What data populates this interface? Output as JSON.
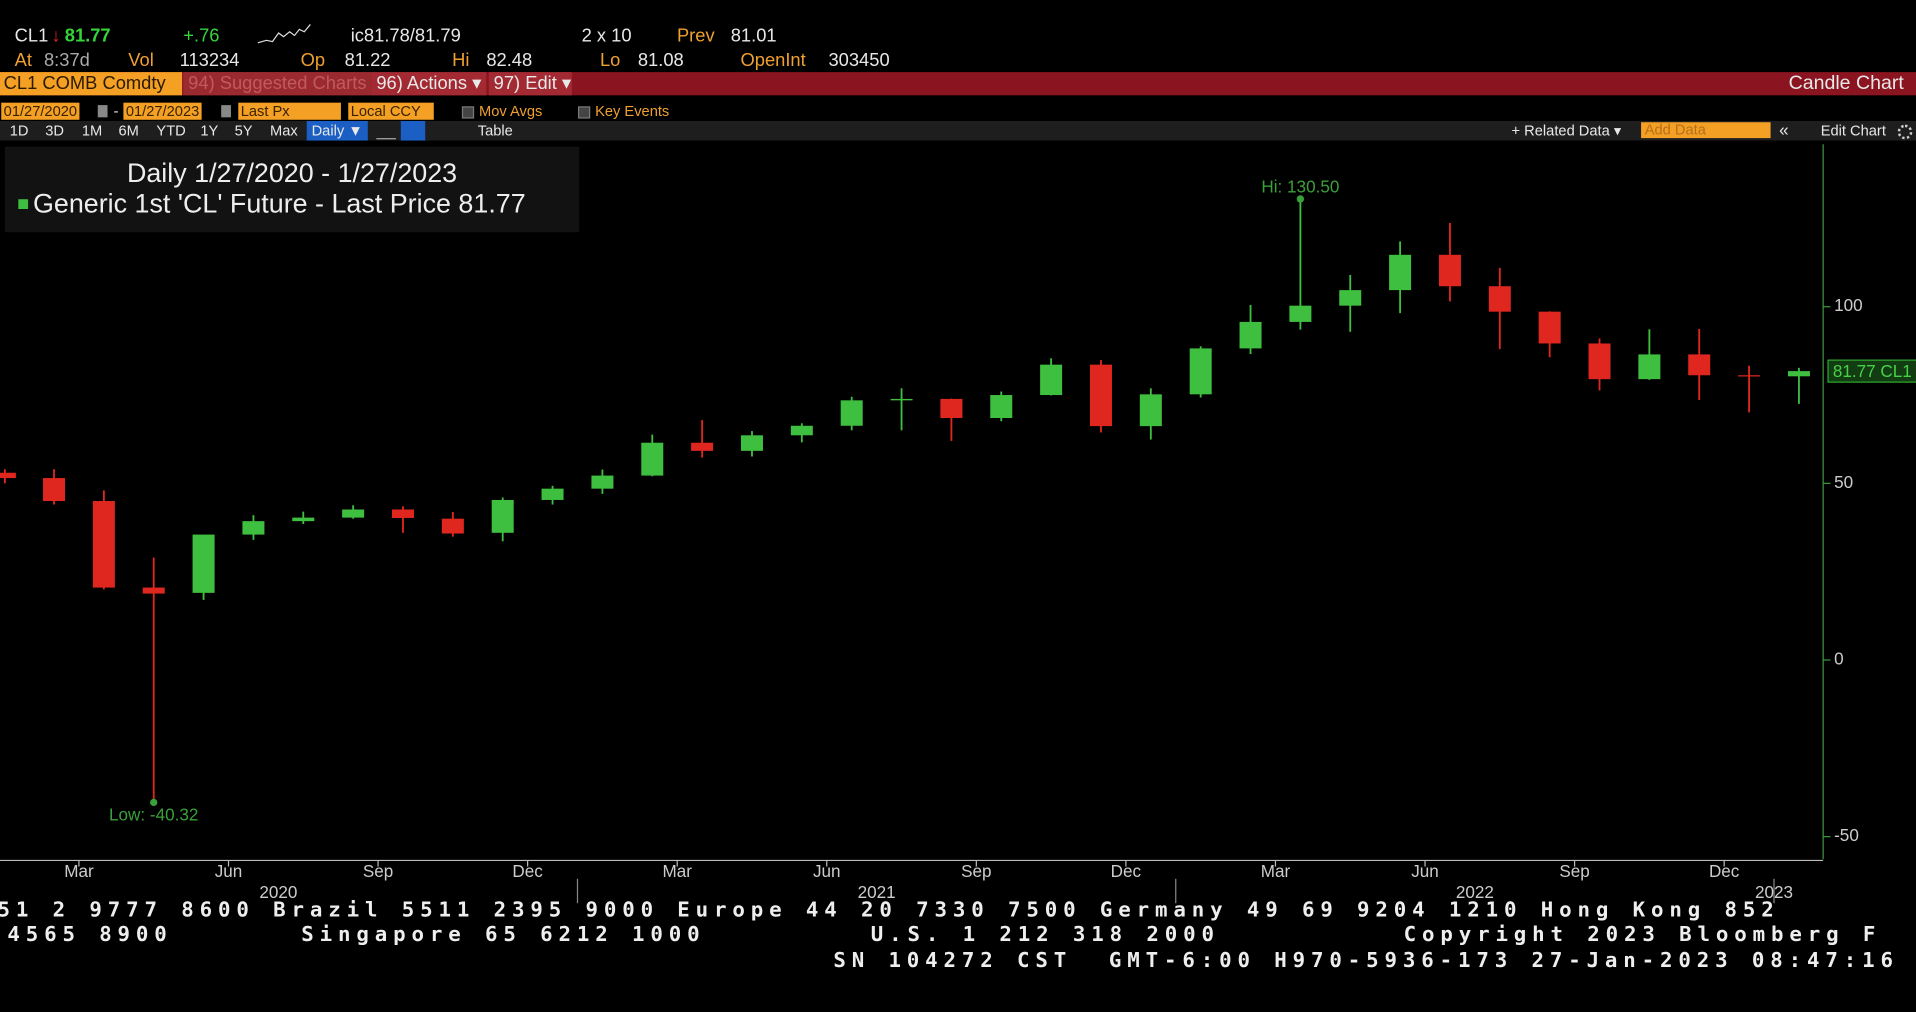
{
  "quote": {
    "ticker": "CL1",
    "arrow": "↓",
    "last": 81.77,
    "change": "+.76",
    "bid_ask": "ic81.78/81.79",
    "size": "2 x 10",
    "prev_label": "Prev",
    "prev": 81.01,
    "time_label": "At",
    "time": "8:37d",
    "vol_label": "Vol",
    "vol": 113234,
    "open_label": "Op",
    "open": 81.22,
    "high_label": "Hi",
    "high": 82.48,
    "low_label": "Lo",
    "low": 81.08,
    "oi_label": "OpenInt",
    "oi": 303450
  },
  "menu": {
    "security": "CL1 COMB Comdty",
    "suggested": "94) Suggested Charts",
    "actions": "96) Actions ▾",
    "edit": "97) Edit ▾",
    "view": "Candle Chart"
  },
  "controls": {
    "start": "01/27/2020",
    "dash": "-",
    "end": "01/27/2023",
    "field": "Last Px",
    "currency": "Local CCY",
    "mov_avgs": "Mov Avgs",
    "key_events": "Key Events",
    "periods": [
      "1D",
      "3D",
      "1M",
      "6M",
      "YTD",
      "1Y",
      "5Y",
      "Max"
    ],
    "frequency": "Daily ▼",
    "table": "Table",
    "related": "+ Related Data ▾",
    "add_data": "Add Data",
    "collapse": "«",
    "edit_chart": "Edit Chart"
  },
  "chart_data": {
    "type": "candlestick",
    "title": "Daily 1/27/2020 - 1/27/2023",
    "series": [
      {
        "name": "Generic 1st 'CL' Future - Last Price",
        "last_label": "81.77",
        "tag": "81.77 CL1",
        "up_color": "#3fbf3f",
        "down_color": "#e0271f",
        "x": [
          "2020-01",
          "2020-02",
          "2020-03",
          "2020-04",
          "2020-05",
          "2020-06",
          "2020-07",
          "2020-08",
          "2020-09",
          "2020-10",
          "2020-11",
          "2020-12",
          "2021-01",
          "2021-02",
          "2021-03",
          "2021-04",
          "2021-05",
          "2021-06",
          "2021-07",
          "2021-08",
          "2021-09",
          "2021-10",
          "2021-11",
          "2021-12",
          "2022-01",
          "2022-02",
          "2022-03",
          "2022-04",
          "2022-05",
          "2022-06",
          "2022-07",
          "2022-08",
          "2022-09",
          "2022-10",
          "2022-11",
          "2022-12",
          "2023-01"
        ],
        "open": [
          53,
          51.5,
          45,
          20.5,
          19,
          35.5,
          39.3,
          40.3,
          42.6,
          40,
          36,
          45.3,
          48.5,
          52.2,
          61.5,
          59.2,
          63.6,
          66.3,
          73.5,
          73.9,
          68.5,
          75,
          83.6,
          66.2,
          75.2,
          88.2,
          95.7,
          100.3,
          104.7,
          114.7,
          105.8,
          98.6,
          89.6,
          79.5,
          86.5,
          80.6,
          80.3
        ],
        "high": [
          54,
          54,
          48,
          29,
          35,
          41,
          42,
          43.8,
          43.5,
          41.9,
          46,
          49.3,
          53.9,
          63.8,
          67.9,
          64.8,
          67,
          74.5,
          76.9,
          74,
          76,
          85.4,
          84.9,
          76.9,
          88.8,
          100.5,
          130.5,
          109,
          118.5,
          123.7,
          111,
          98.7,
          91,
          93.6,
          93.7,
          83.3,
          82.7
        ],
        "low": [
          50,
          44,
          20,
          -40.32,
          17,
          34,
          38.5,
          40,
          36,
          34.9,
          33.6,
          44,
          47,
          52,
          57.3,
          57.6,
          61.6,
          65,
          65,
          62,
          67.6,
          74.9,
          64.4,
          62.4,
          74.3,
          86.6,
          93.5,
          92.9,
          98.2,
          101.5,
          88,
          85.7,
          76.3,
          79.3,
          73.6,
          70.1,
          72.5
        ],
        "close": [
          51.5,
          45,
          20.5,
          18.8,
          35.5,
          39.3,
          40.3,
          42.6,
          40.2,
          35.8,
          45.3,
          48.5,
          52.2,
          61.5,
          59.2,
          63.6,
          66.3,
          73.5,
          73.9,
          68.5,
          75,
          83.6,
          66.2,
          75.2,
          88.2,
          95.7,
          100.3,
          104.7,
          114.7,
          105.8,
          98.6,
          89.6,
          79.5,
          86.5,
          80.6,
          80.3,
          81.77
        ]
      }
    ],
    "annotations": {
      "high": "Hi: 130.50",
      "low": "Low: -40.32"
    },
    "ylim": [
      -56.4,
      146
    ],
    "yticks": [
      -50,
      0,
      50,
      100
    ],
    "xticks": [
      {
        "value": "2020-03",
        "label": "Mar"
      },
      {
        "value": "2020-06",
        "label": "Jun"
      },
      {
        "value": "2020-09",
        "label": "Sep"
      },
      {
        "value": "2020-12",
        "label": "Dec"
      },
      {
        "value": "2021-03",
        "label": "Mar"
      },
      {
        "value": "2021-06",
        "label": "Jun"
      },
      {
        "value": "2021-09",
        "label": "Sep"
      },
      {
        "value": "2021-12",
        "label": "Dec"
      },
      {
        "value": "2022-03",
        "label": "Mar"
      },
      {
        "value": "2022-06",
        "label": "Jun"
      },
      {
        "value": "2022-09",
        "label": "Sep"
      },
      {
        "value": "2022-12",
        "label": "Dec"
      }
    ],
    "year_ticks": [
      {
        "value": "2020-07",
        "label": "2020"
      },
      {
        "value": "2021-07",
        "label": "2021"
      },
      {
        "value": "2022-07",
        "label": "2022"
      },
      {
        "value": "2023-01",
        "label": "2023"
      }
    ]
  },
  "footer": {
    "line1": "51 2 9777 8600 Brazil 5511 2395 9000 Europe 44 20 7330 7500 Germany 49 69 9204 1210 Hong Kong 852",
    "line2": "4565 8900       Singapore 65 6212 1000         U.S. 1 212 318 2000          Copyright 2023 Bloomberg F",
    "line3": "SN 104272 CST  GMT-6:00 H970-5936-173 27-Jan-2023 08:47:16"
  }
}
